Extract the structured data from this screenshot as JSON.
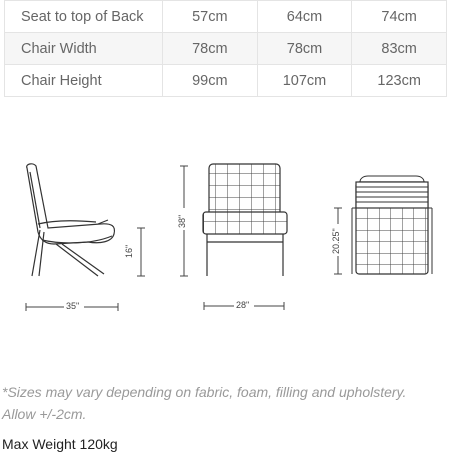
{
  "specs": {
    "rows": [
      {
        "label": "Seat to top of Back",
        "values": [
          "57cm",
          "64cm",
          "74cm"
        ]
      },
      {
        "label": "Chair Width",
        "values": [
          "78cm",
          "78cm",
          "83cm"
        ]
      },
      {
        "label": "Chair Height",
        "values": [
          "99cm",
          "107cm",
          "123cm"
        ]
      }
    ]
  },
  "drawings": {
    "side_height_dim": "16\"",
    "side_depth_dim": "35\"",
    "front_height_dim": "38\"",
    "front_width_dim": "28\"",
    "back_height_dim": "20.25\""
  },
  "note": {
    "text": "*Sizes may vary depending on fabric, foam, filling and upholstery. Allow +/-2cm."
  },
  "weight": {
    "text": "Max Weight 120kg"
  }
}
